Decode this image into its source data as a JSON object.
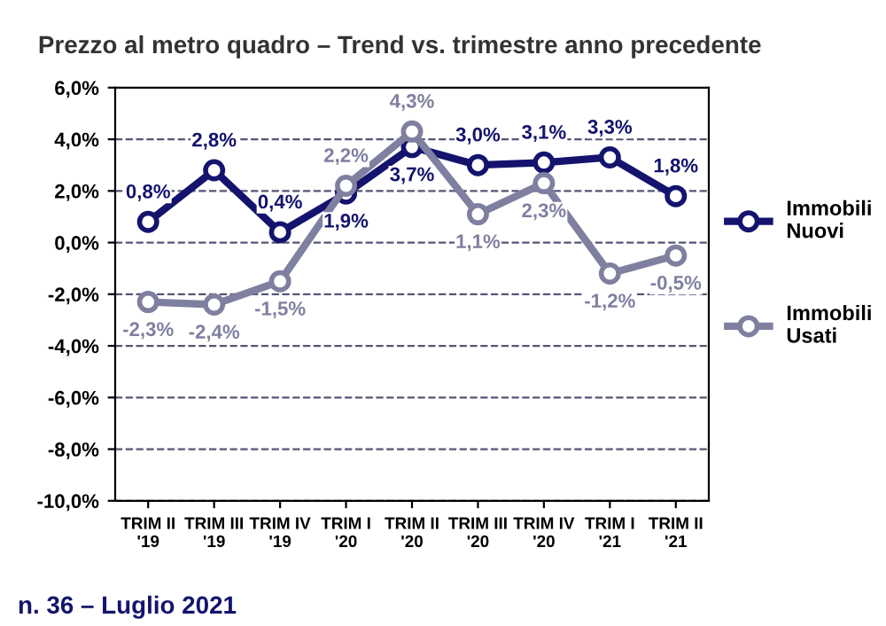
{
  "chart_data": {
    "type": "line",
    "title": "Prezzo al metro quadro – Trend vs. trimestre anno precedente",
    "categories": [
      "TRIM II\n'19",
      "TRIM III\n'19",
      "TRIM IV\n'19",
      "TRIM I\n'20",
      "TRIM II\n'20",
      "TRIM III\n'20",
      "TRIM IV\n'20",
      "TRIM I\n'21",
      "TRIM II\n'21"
    ],
    "series": [
      {
        "name": "Immobili\nNuovi",
        "color": "#14146e",
        "values": [
          0.8,
          2.8,
          0.4,
          1.9,
          3.7,
          3.0,
          3.1,
          3.3,
          1.8
        ],
        "value_labels": [
          "0,8%",
          "2,8%",
          "0,4%",
          "1,9%",
          "3,7%",
          "3,0%",
          "3,1%",
          "3,3%",
          "1,8%"
        ]
      },
      {
        "name": "Immobili\nUsati",
        "color": "#7f7fa0",
        "values": [
          -2.3,
          -2.4,
          -1.5,
          2.2,
          4.3,
          1.1,
          2.3,
          -1.2,
          -0.5
        ],
        "value_labels": [
          "-2,3%",
          "-2,4%",
          "-1,5%",
          "2,2%",
          "4,3%",
          "1,1%",
          "2,3%",
          "-1,2%",
          "-0,5%"
        ]
      }
    ],
    "ylim": [
      -10,
      6
    ],
    "yticks": [
      {
        "value": -10,
        "label": "-10,0%"
      },
      {
        "value": -8,
        "label": "-8,0%"
      },
      {
        "value": -6,
        "label": "-6,0%"
      },
      {
        "value": -4,
        "label": "-4,0%"
      },
      {
        "value": -2,
        "label": "-2,0%"
      },
      {
        "value": 0,
        "label": "0,0%"
      },
      {
        "value": 2,
        "label": "2,0%"
      },
      {
        "value": 4,
        "label": "4,0%"
      },
      {
        "value": 6,
        "label": "6,0%"
      }
    ],
    "grid": "y",
    "legend": "right",
    "marker": "circle",
    "line_style": "solid",
    "annotations": [
      "n. 36 – Luglio 2021"
    ]
  }
}
